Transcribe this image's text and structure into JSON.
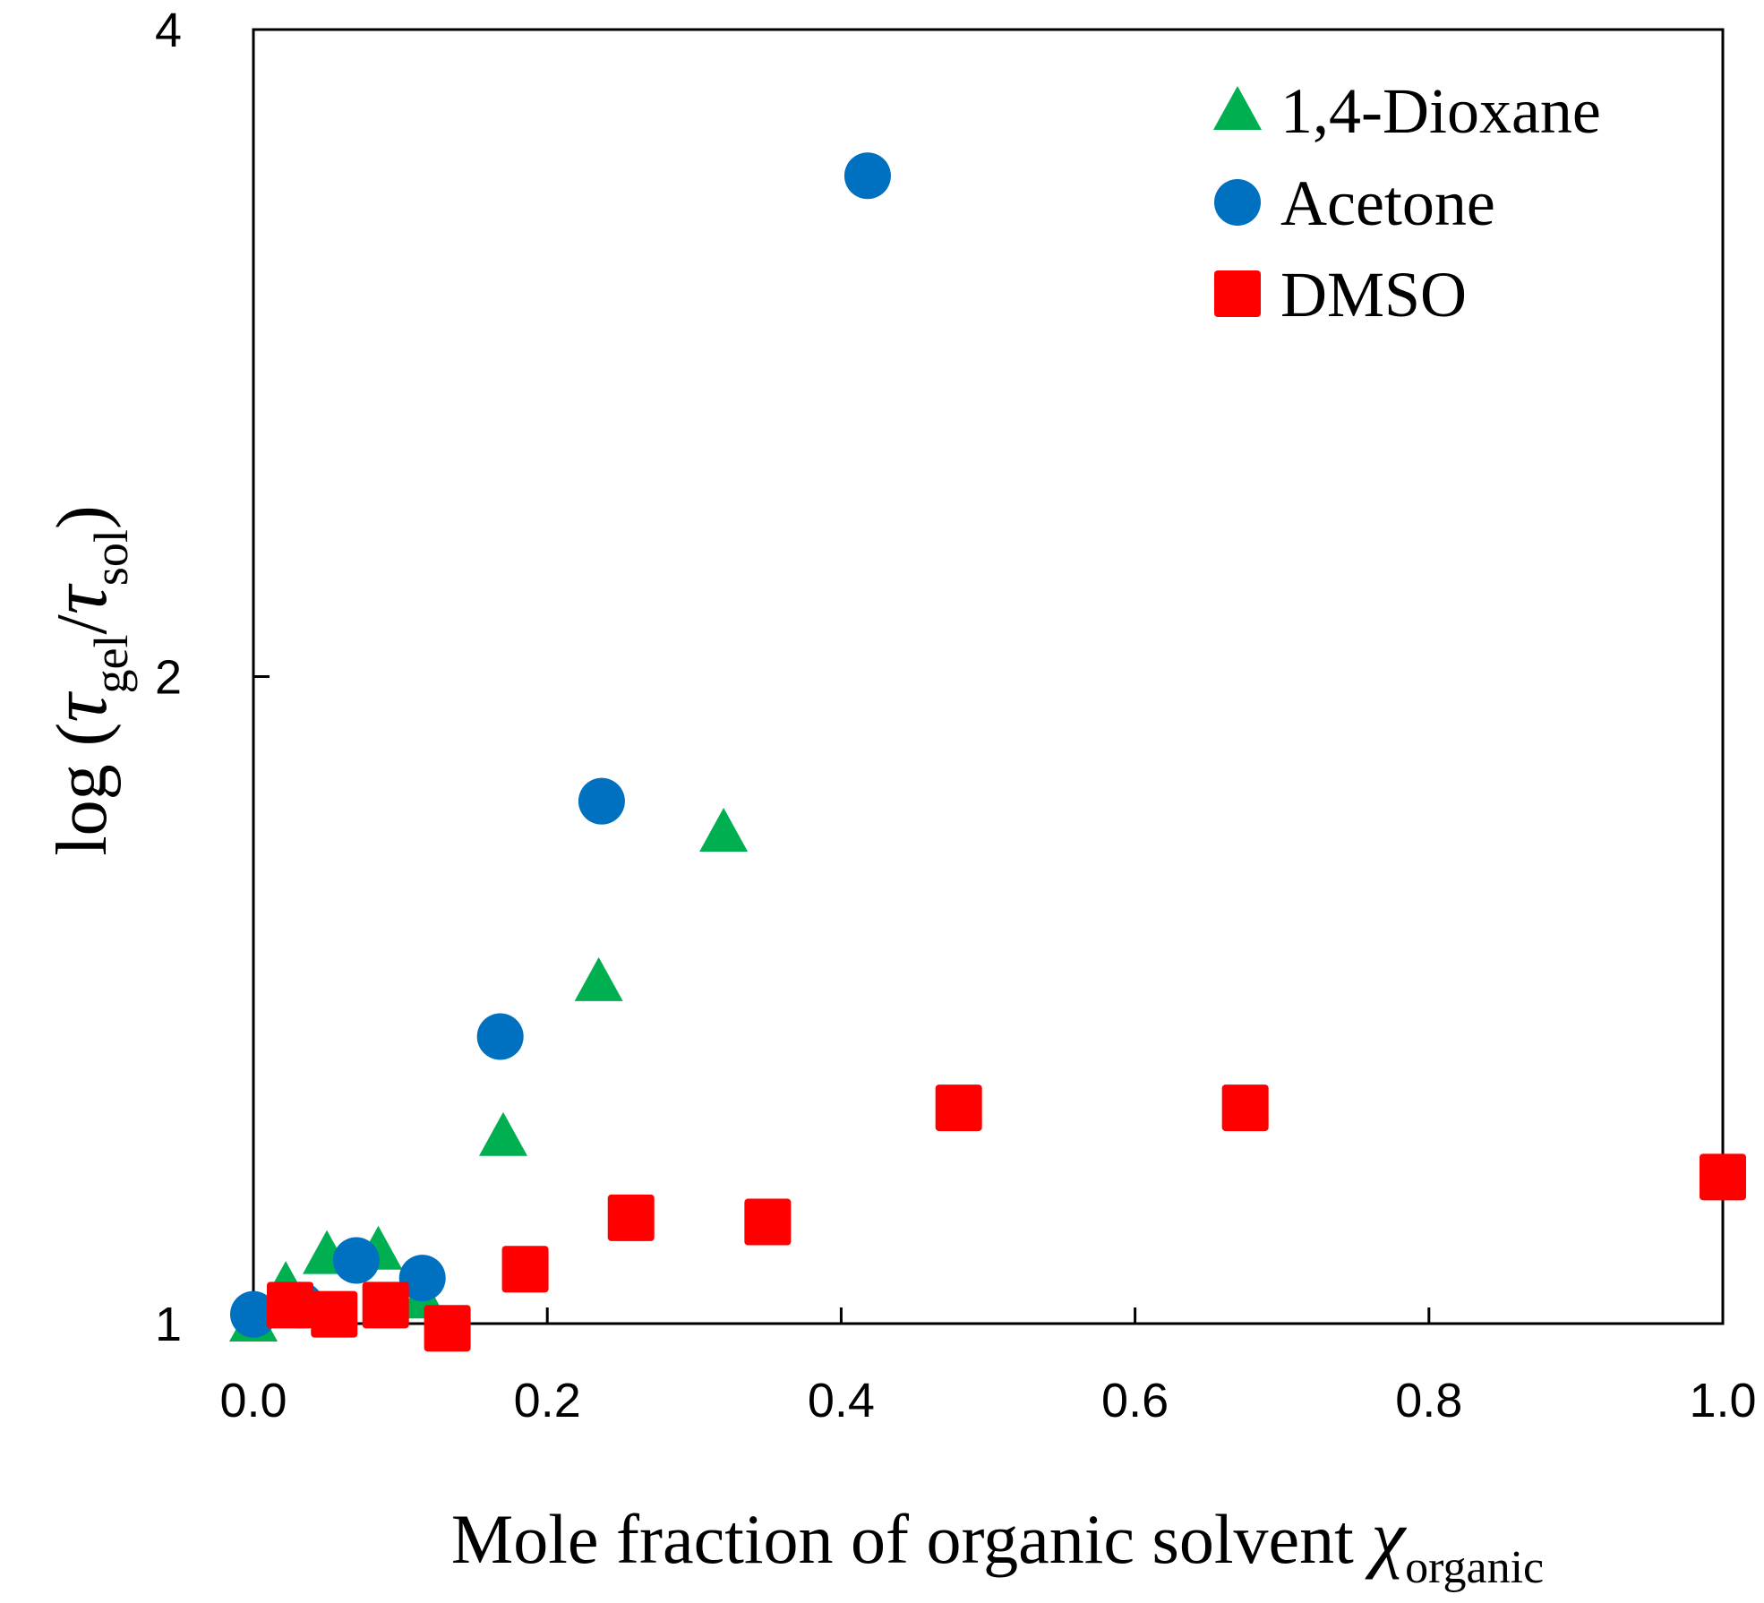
{
  "chart_data": {
    "type": "scatter",
    "title": "",
    "xlabel": "Mole fraction of organic solvent χorganic",
    "xlabel_main": "Mole fraction of organic solvent ",
    "xlabel_symbol": "χ",
    "xlabel_sub": "organic",
    "ylabel_prefix": "log (",
    "ylabel_tau1": "τ",
    "ylabel_sub1": "gel",
    "ylabel_slash": "/",
    "ylabel_tau2": "τ",
    "ylabel_sub2": "sol",
    "ylabel_suffix": ")",
    "xlim": [
      0,
      1
    ],
    "ylim": [
      1,
      4
    ],
    "yscale": "log",
    "x_ticks": [
      0,
      0.2,
      0.4,
      0.6,
      0.8,
      1.0
    ],
    "x_tick_labels": [
      "0.0",
      "0.2",
      "0.4",
      "0.6",
      "0.8",
      "1.0"
    ],
    "y_ticks": [
      1,
      2,
      4
    ],
    "y_tick_labels": [
      "1",
      "2",
      "4"
    ],
    "grid": false,
    "legend_position": "top-right",
    "series": [
      {
        "name": "1,4-Dioxane",
        "marker": "triangle",
        "color": "#00B050",
        "x": [
          0.0,
          0.022,
          0.05,
          0.085,
          0.115,
          0.17,
          0.235,
          0.32
        ],
        "y": [
          1.0,
          1.04,
          1.075,
          1.08,
          1.025,
          1.22,
          1.44,
          1.69
        ]
      },
      {
        "name": "Acetone",
        "marker": "circle",
        "color": "#0070C0",
        "x": [
          0.0,
          0.032,
          0.07,
          0.115,
          0.168,
          0.237,
          0.418
        ],
        "y": [
          1.01,
          1.02,
          1.07,
          1.05,
          1.36,
          1.75,
          3.42
        ]
      },
      {
        "name": "DMSO",
        "marker": "square",
        "color": "#FF0000",
        "x": [
          0.025,
          0.055,
          0.09,
          0.132,
          0.185,
          0.257,
          0.35,
          0.48,
          0.675,
          1.0
        ],
        "y": [
          1.02,
          1.01,
          1.02,
          0.995,
          1.06,
          1.12,
          1.115,
          1.26,
          1.26,
          1.17
        ]
      }
    ]
  }
}
